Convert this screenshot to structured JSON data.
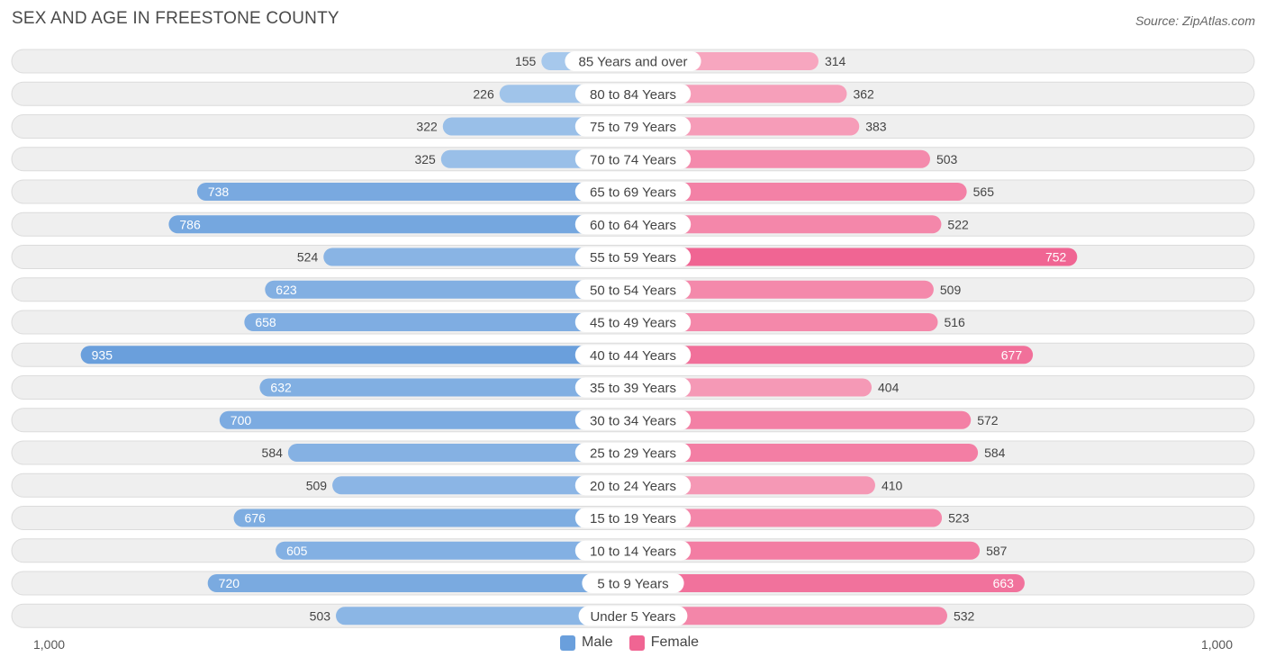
{
  "header": {
    "title": "SEX AND AGE IN FREESTONE COUNTY",
    "source": "Source: ZipAtlas.com"
  },
  "legend": {
    "male_label": "Male",
    "female_label": "Female"
  },
  "axis": {
    "left_label": "1,000",
    "right_label": "1,000"
  },
  "colors": {
    "male_light": "#a6c8ec",
    "male_dark": "#6a9fdc",
    "female_light": "#f7a8c0",
    "female_dark": "#f06593",
    "row_bg": "#efefef",
    "row_border": "#dcdcdc"
  },
  "chart_data": {
    "type": "bar",
    "orientation": "horizontal-diverging",
    "title": "SEX AND AGE IN FREESTONE COUNTY",
    "xlim": [
      -1000,
      1000
    ],
    "categories": [
      "85 Years and over",
      "80 to 84 Years",
      "75 to 79 Years",
      "70 to 74 Years",
      "65 to 69 Years",
      "60 to 64 Years",
      "55 to 59 Years",
      "50 to 54 Years",
      "45 to 49 Years",
      "40 to 44 Years",
      "35 to 39 Years",
      "30 to 34 Years",
      "25 to 29 Years",
      "20 to 24 Years",
      "15 to 19 Years",
      "10 to 14 Years",
      "5 to 9 Years",
      "Under 5 Years"
    ],
    "series": [
      {
        "name": "Male",
        "values": [
          155,
          226,
          322,
          325,
          738,
          786,
          524,
          623,
          658,
          935,
          632,
          700,
          584,
          509,
          676,
          605,
          720,
          503
        ]
      },
      {
        "name": "Female",
        "values": [
          314,
          362,
          383,
          503,
          565,
          522,
          752,
          509,
          516,
          677,
          404,
          572,
          584,
          410,
          523,
          587,
          663,
          532
        ]
      }
    ],
    "legend_position": "bottom-center"
  }
}
